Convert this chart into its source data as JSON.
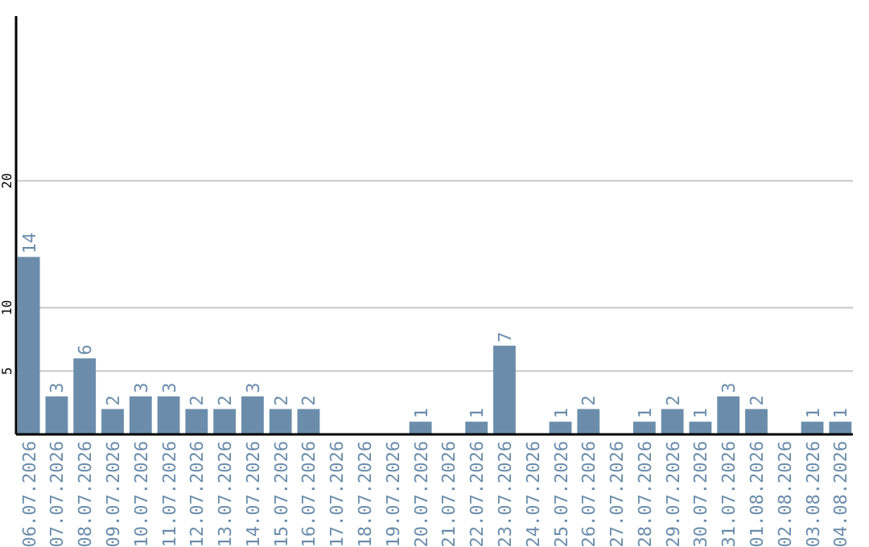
{
  "chart_data": {
    "type": "bar",
    "categories": [
      "06.07.2026",
      "07.07.2026",
      "08.07.2026",
      "09.07.2026",
      "10.07.2026",
      "11.07.2026",
      "12.07.2026",
      "13.07.2026",
      "14.07.2026",
      "15.07.2026",
      "16.07.2026",
      "17.07.2026",
      "18.07.2026",
      "19.07.2026",
      "20.07.2026",
      "21.07.2026",
      "22.07.2026",
      "23.07.2026",
      "24.07.2026",
      "25.07.2026",
      "26.07.2026",
      "27.07.2026",
      "28.07.2026",
      "29.07.2026",
      "30.07.2026",
      "31.07.2026",
      "01.08.2026",
      "02.08.2026",
      "03.08.2026",
      "04.08.2026"
    ],
    "values": [
      14,
      3,
      6,
      2,
      3,
      3,
      2,
      2,
      3,
      2,
      2,
      null,
      null,
      null,
      1,
      null,
      1,
      7,
      null,
      1,
      2,
      null,
      1,
      2,
      1,
      3,
      2,
      null,
      1,
      1
    ],
    "color": "#6b8dab",
    "ylim": [
      0,
      33
    ],
    "yticks": [
      5,
      10,
      20
    ],
    "grid": "y",
    "data_labels": true
  }
}
